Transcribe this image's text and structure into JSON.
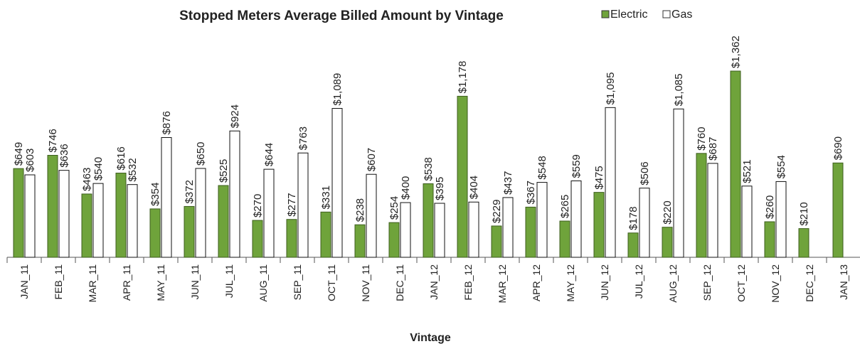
{
  "chart_data": {
    "type": "bar",
    "title": "Stopped Meters Average Billed Amount by Vintage",
    "x_label": "Vintage",
    "categories": [
      "JAN_11",
      "FEB_11",
      "MAR_11",
      "APR_11",
      "MAY_11",
      "JUN_11",
      "JUL_11",
      "AUG_11",
      "SEP_11",
      "OCT_11",
      "NOV_11",
      "DEC_11",
      "JAN_12",
      "FEB_12",
      "MAR_12",
      "APR_12",
      "MAY_12",
      "JUN_12",
      "JUL_12",
      "AUG_12",
      "SEP_12",
      "OCT_12",
      "NOV_12",
      "DEC_12",
      "JAN_13"
    ],
    "legend": "top-right",
    "series": [
      {
        "name": "Electric",
        "color": "#6fa33b",
        "values": [
          649,
          746,
          463,
          616,
          354,
          372,
          525,
          270,
          277,
          331,
          238,
          254,
          538,
          1178,
          229,
          367,
          265,
          475,
          178,
          220,
          760,
          1362,
          260,
          210,
          690
        ],
        "value_labels": [
          "$649",
          "$746",
          "$463",
          "$616",
          "$354",
          "$372",
          "$525",
          "$270",
          "$277",
          "$331",
          "$238",
          "$254",
          "$538",
          "$1,178",
          "$229",
          "$367",
          "$265",
          "$475",
          "$178",
          "$220",
          "$760",
          "$1,362",
          "$260",
          "$210",
          "$690"
        ]
      },
      {
        "name": "Gas",
        "color": "#ffffff",
        "values": [
          603,
          636,
          540,
          532,
          876,
          650,
          924,
          644,
          763,
          1089,
          607,
          400,
          395,
          404,
          437,
          548,
          559,
          1095,
          506,
          1085,
          687,
          521,
          554,
          null,
          null
        ],
        "value_labels": [
          "$603",
          "$636",
          "$540",
          "$532",
          "$876",
          "$650",
          "$924",
          "$644",
          "$763",
          "$1,089",
          "$607",
          "$400",
          "$395",
          "$404",
          "$437",
          "$548",
          "$559",
          "$1,095",
          "$506",
          "$1,085",
          "$687",
          "$521",
          "$554",
          null,
          null
        ]
      }
    ]
  }
}
